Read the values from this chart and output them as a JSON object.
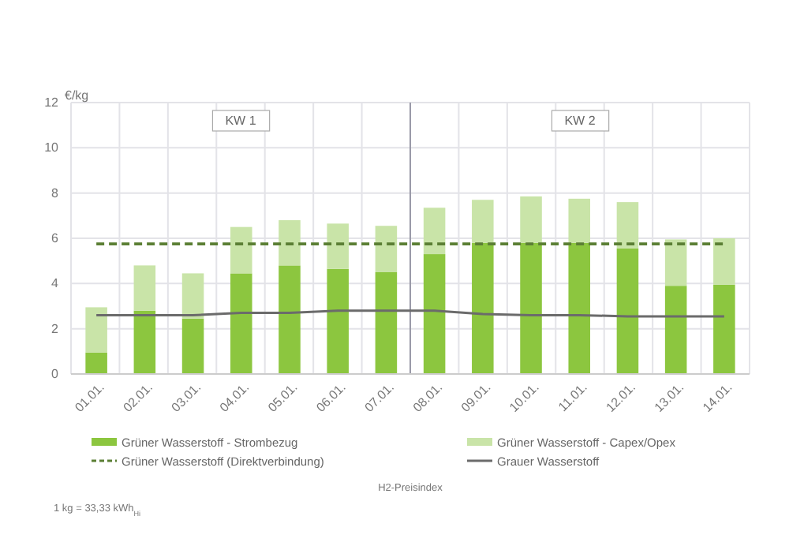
{
  "chart_data": {
    "type": "bar",
    "ylabel": "€/kg",
    "categories": [
      "01.01.",
      "02.01.",
      "03.01.",
      "04.01.",
      "05.01.",
      "06.01.",
      "07.01.",
      "08.01.",
      "09.01.",
      "10.01.",
      "11.01.",
      "12.01.",
      "13.01.",
      "14.01."
    ],
    "stacked": true,
    "series": [
      {
        "name": "Grüner Wasserstoff - Strombezug",
        "color": "#8cc63f",
        "values": [
          0.95,
          2.8,
          2.45,
          4.45,
          4.8,
          4.65,
          4.5,
          5.3,
          5.8,
          5.8,
          5.8,
          5.55,
          3.9,
          3.95
        ]
      },
      {
        "name": "Grüner Wasserstoff - Capex/Opex",
        "color": "#c9e4a8",
        "values": [
          2.0,
          2.0,
          2.0,
          2.05,
          2.0,
          2.0,
          2.05,
          2.05,
          1.9,
          2.05,
          1.95,
          2.05,
          2.05,
          2.05
        ]
      },
      {
        "name": "Grüner Wasserstoff (Direktverbindung)",
        "type": "line",
        "line_style": "dashed",
        "color": "#5b7f34",
        "values": [
          5.75,
          5.75,
          5.75,
          5.75,
          5.75,
          5.75,
          5.75,
          5.75,
          5.75,
          5.75,
          5.75,
          5.75,
          5.75,
          5.75
        ]
      },
      {
        "name": "Grauer Wasserstoff",
        "type": "line",
        "line_style": "solid",
        "color": "#6b6b6b",
        "values": [
          2.6,
          2.6,
          2.6,
          2.7,
          2.7,
          2.8,
          2.8,
          2.8,
          2.65,
          2.6,
          2.6,
          2.55,
          2.55,
          2.55
        ]
      }
    ],
    "ylim": [
      0,
      12
    ],
    "yticks": [
      0,
      2,
      4,
      6,
      8,
      10,
      12
    ],
    "grid": true,
    "legend": "bottom",
    "ref_lines": [
      {
        "axis": "x",
        "value": "08.01.",
        "color": "#9a9aa8"
      }
    ],
    "annotations": [
      "KW 1",
      "KW 2",
      "H2-Preisindex",
      "1 kg = 33,33 kWh$_{Hi}$"
    ]
  }
}
